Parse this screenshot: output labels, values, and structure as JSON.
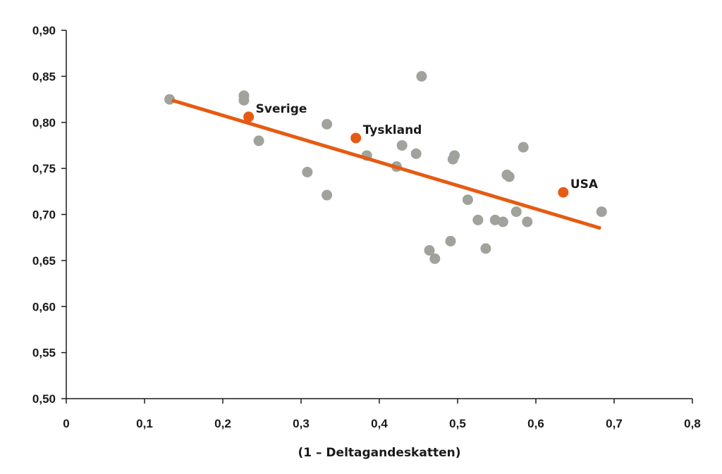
{
  "chart_data": {
    "type": "scatter",
    "title": "",
    "xlabel": "(1 – Deltagandeskatten)",
    "ylabel": "",
    "xlim": [
      0,
      0.8
    ],
    "ylim": [
      0.5,
      0.9
    ],
    "x_ticks": [
      0,
      0.1,
      0.2,
      0.3,
      0.4,
      0.5,
      0.6,
      0.7,
      0.8
    ],
    "x_tick_labels": [
      "0",
      "0,1",
      "0,2",
      "0,3",
      "0,4",
      "0,5",
      "0,6",
      "0,7",
      "0,8"
    ],
    "y_ticks": [
      0.5,
      0.55,
      0.6,
      0.65,
      0.7,
      0.75,
      0.8,
      0.85,
      0.9
    ],
    "y_tick_labels": [
      "0,50",
      "0,55",
      "0,60",
      "0,65",
      "0,70",
      "0,75",
      "0,80",
      "0,85",
      "0,90"
    ],
    "grid": false,
    "colors": {
      "points": "#a0a39b",
      "highlight": "#e55b13",
      "trendline": "#e55b13",
      "axis": "#1a1a1a"
    },
    "points": [
      {
        "x": 0.132,
        "y": 0.825
      },
      {
        "x": 0.227,
        "y": 0.829
      },
      {
        "x": 0.227,
        "y": 0.824
      },
      {
        "x": 0.246,
        "y": 0.78
      },
      {
        "x": 0.308,
        "y": 0.746
      },
      {
        "x": 0.333,
        "y": 0.798
      },
      {
        "x": 0.333,
        "y": 0.721
      },
      {
        "x": 0.384,
        "y": 0.764
      },
      {
        "x": 0.422,
        "y": 0.752
      },
      {
        "x": 0.429,
        "y": 0.775
      },
      {
        "x": 0.447,
        "y": 0.766
      },
      {
        "x": 0.454,
        "y": 0.85
      },
      {
        "x": 0.464,
        "y": 0.661
      },
      {
        "x": 0.471,
        "y": 0.652
      },
      {
        "x": 0.491,
        "y": 0.671
      },
      {
        "x": 0.494,
        "y": 0.76
      },
      {
        "x": 0.496,
        "y": 0.764
      },
      {
        "x": 0.513,
        "y": 0.716
      },
      {
        "x": 0.526,
        "y": 0.694
      },
      {
        "x": 0.536,
        "y": 0.663
      },
      {
        "x": 0.548,
        "y": 0.694
      },
      {
        "x": 0.558,
        "y": 0.692
      },
      {
        "x": 0.563,
        "y": 0.743
      },
      {
        "x": 0.566,
        "y": 0.741
      },
      {
        "x": 0.575,
        "y": 0.703
      },
      {
        "x": 0.584,
        "y": 0.773
      },
      {
        "x": 0.589,
        "y": 0.692
      },
      {
        "x": 0.684,
        "y": 0.703
      }
    ],
    "highlighted": [
      {
        "label": "Sverige",
        "x": 0.233,
        "y": 0.806
      },
      {
        "label": "Tyskland",
        "x": 0.37,
        "y": 0.783
      },
      {
        "label": "USA",
        "x": 0.635,
        "y": 0.724
      }
    ],
    "trendline": {
      "x1": 0.135,
      "y1": 0.824,
      "x2": 0.683,
      "y2": 0.685
    }
  }
}
